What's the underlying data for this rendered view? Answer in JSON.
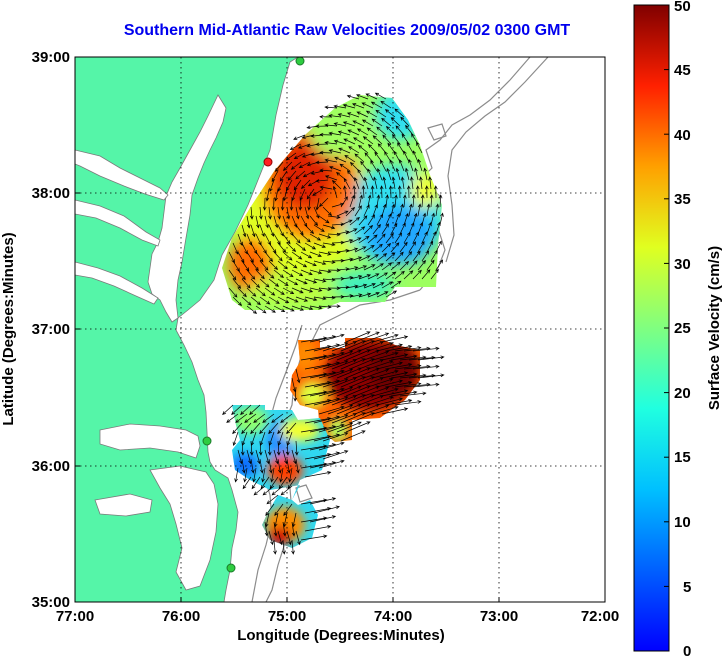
{
  "title": "Southern Mid-Atlantic Raw Velocities 2009/05/02 0300 GMT",
  "x_axis": {
    "label": "Longitude (Degrees:Minutes)",
    "ticks": [
      "77:00",
      "76:00",
      "75:00",
      "74:00",
      "73:00",
      "72:00"
    ]
  },
  "y_axis": {
    "label": "Latitude (Degrees:Minutes)",
    "ticks": [
      "39:00",
      "38:00",
      "37:00",
      "36:00",
      "35:00"
    ]
  },
  "colorbar": {
    "label": "Surface Velocity (cm/s)",
    "ticks": [
      "50",
      "45",
      "40",
      "35",
      "30",
      "25",
      "20",
      "15",
      "10",
      "5",
      "0"
    ],
    "min": 0,
    "max": 50,
    "colormap": "jet"
  },
  "colors": {
    "land": "#55f5a8",
    "water": "#ffffff",
    "bathymetry": "#8c8c8c",
    "title": "#0000ee",
    "station_marker": "#2ecc40",
    "grid": "#000000"
  },
  "map": {
    "lon_range": [
      -77,
      -72
    ],
    "lat_range": [
      35,
      39
    ],
    "grid": true,
    "grid_style": "dotted"
  }
}
